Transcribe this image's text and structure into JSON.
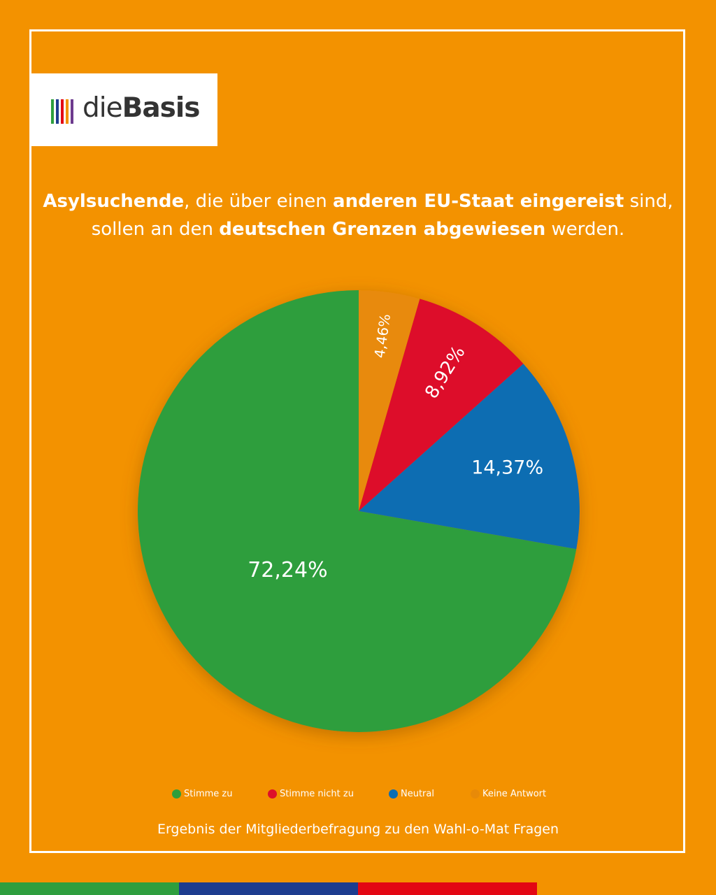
{
  "logo": {
    "text_light": "die",
    "text_bold": "Basis",
    "bar_colors": [
      "#2e9e3e",
      "#1d3c8f",
      "#e30613",
      "#f39200",
      "#6d3b8e"
    ]
  },
  "headline": {
    "line1": [
      {
        "text": "Asylsuchende",
        "bold": true
      },
      {
        "text": ", die über einen ",
        "bold": false
      },
      {
        "text": "anderen EU-Staat eingereist",
        "bold": true
      },
      {
        "text": " sind,",
        "bold": false
      }
    ],
    "line2": [
      {
        "text": "sollen an den ",
        "bold": false
      },
      {
        "text": "deutschen Grenzen abgewiesen",
        "bold": true
      },
      {
        "text": " werden.",
        "bold": false
      }
    ]
  },
  "chart_data": {
    "type": "pie",
    "start": "12 o'clock, clockwise",
    "slices": [
      {
        "label": "Keine Antwort",
        "value": 4.46,
        "display": "4,46%",
        "color": "#e88a08"
      },
      {
        "label": "Stimme nicht zu",
        "value": 8.92,
        "display": "8,92%",
        "color": "#dd0f2a"
      },
      {
        "label": "Neutral",
        "value": 14.37,
        "display": "14,37%",
        "color": "#0b6db2"
      },
      {
        "label": "Stimme zu",
        "value": 72.24,
        "display": "72,24%",
        "color": "#2e9e3c"
      }
    ],
    "legend": [
      {
        "label": "Stimme zu",
        "color": "#2e9e3c"
      },
      {
        "label": "Stimme nicht zu",
        "color": "#dd0f2a"
      },
      {
        "label": "Neutral",
        "color": "#0b6db2"
      },
      {
        "label": "Keine Antwort",
        "color": "#e88a08"
      }
    ],
    "legend_position": "bottom"
  },
  "footer": "Ergebnis der Mitgliederbefragung zu den Wahl-o-Mat Fragen",
  "colors": {
    "background": "#f39200",
    "text": "#ffffff",
    "strip": [
      "#2e9e3e",
      "#1d3c8f",
      "#e30613",
      "#f39200"
    ]
  }
}
